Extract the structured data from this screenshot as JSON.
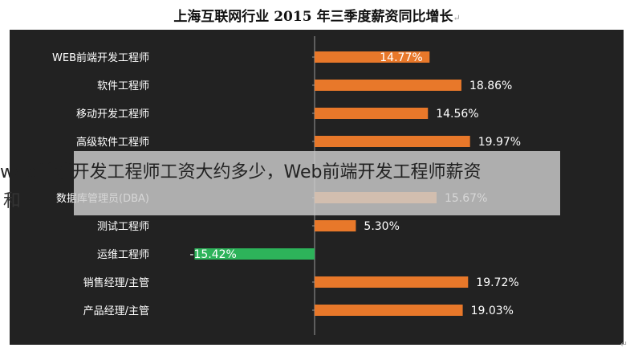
{
  "title": "上海互联网行业 2015 年三季度薪资同比增长",
  "title_mark": "↵",
  "corner_mark": "↵",
  "overlay": {
    "text": "web前端开发工程师工资大约多少，Web前端开发工程师薪资",
    "tail": "和"
  },
  "colors": {
    "positive": "#E8782A",
    "negative": "#2DB35A",
    "background": "#222222",
    "label": "#ffffff"
  },
  "chart_data": {
    "type": "bar",
    "orientation": "horizontal",
    "categories": [
      "WEB前端开发工程师",
      "软件工程师",
      "移动开发工程师",
      "高级软件工程师",
      "",
      "数据库管理员(DBA)",
      "测试工程师",
      "运维工程师",
      "销售经理/主管",
      "产品经理/主管"
    ],
    "values": [
      14.77,
      18.86,
      14.56,
      19.97,
      0,
      15.67,
      5.3,
      -15.42,
      19.72,
      19.03
    ],
    "data_labels": [
      "14.77%",
      "18.86%",
      "14.56%",
      "19.97%",
      "",
      "15.67%",
      "5.30%",
      "-15.42%",
      "19.72%",
      "19.03%"
    ],
    "xlim": [
      -20,
      20
    ],
    "title": "",
    "xlabel": "",
    "ylabel": ""
  }
}
